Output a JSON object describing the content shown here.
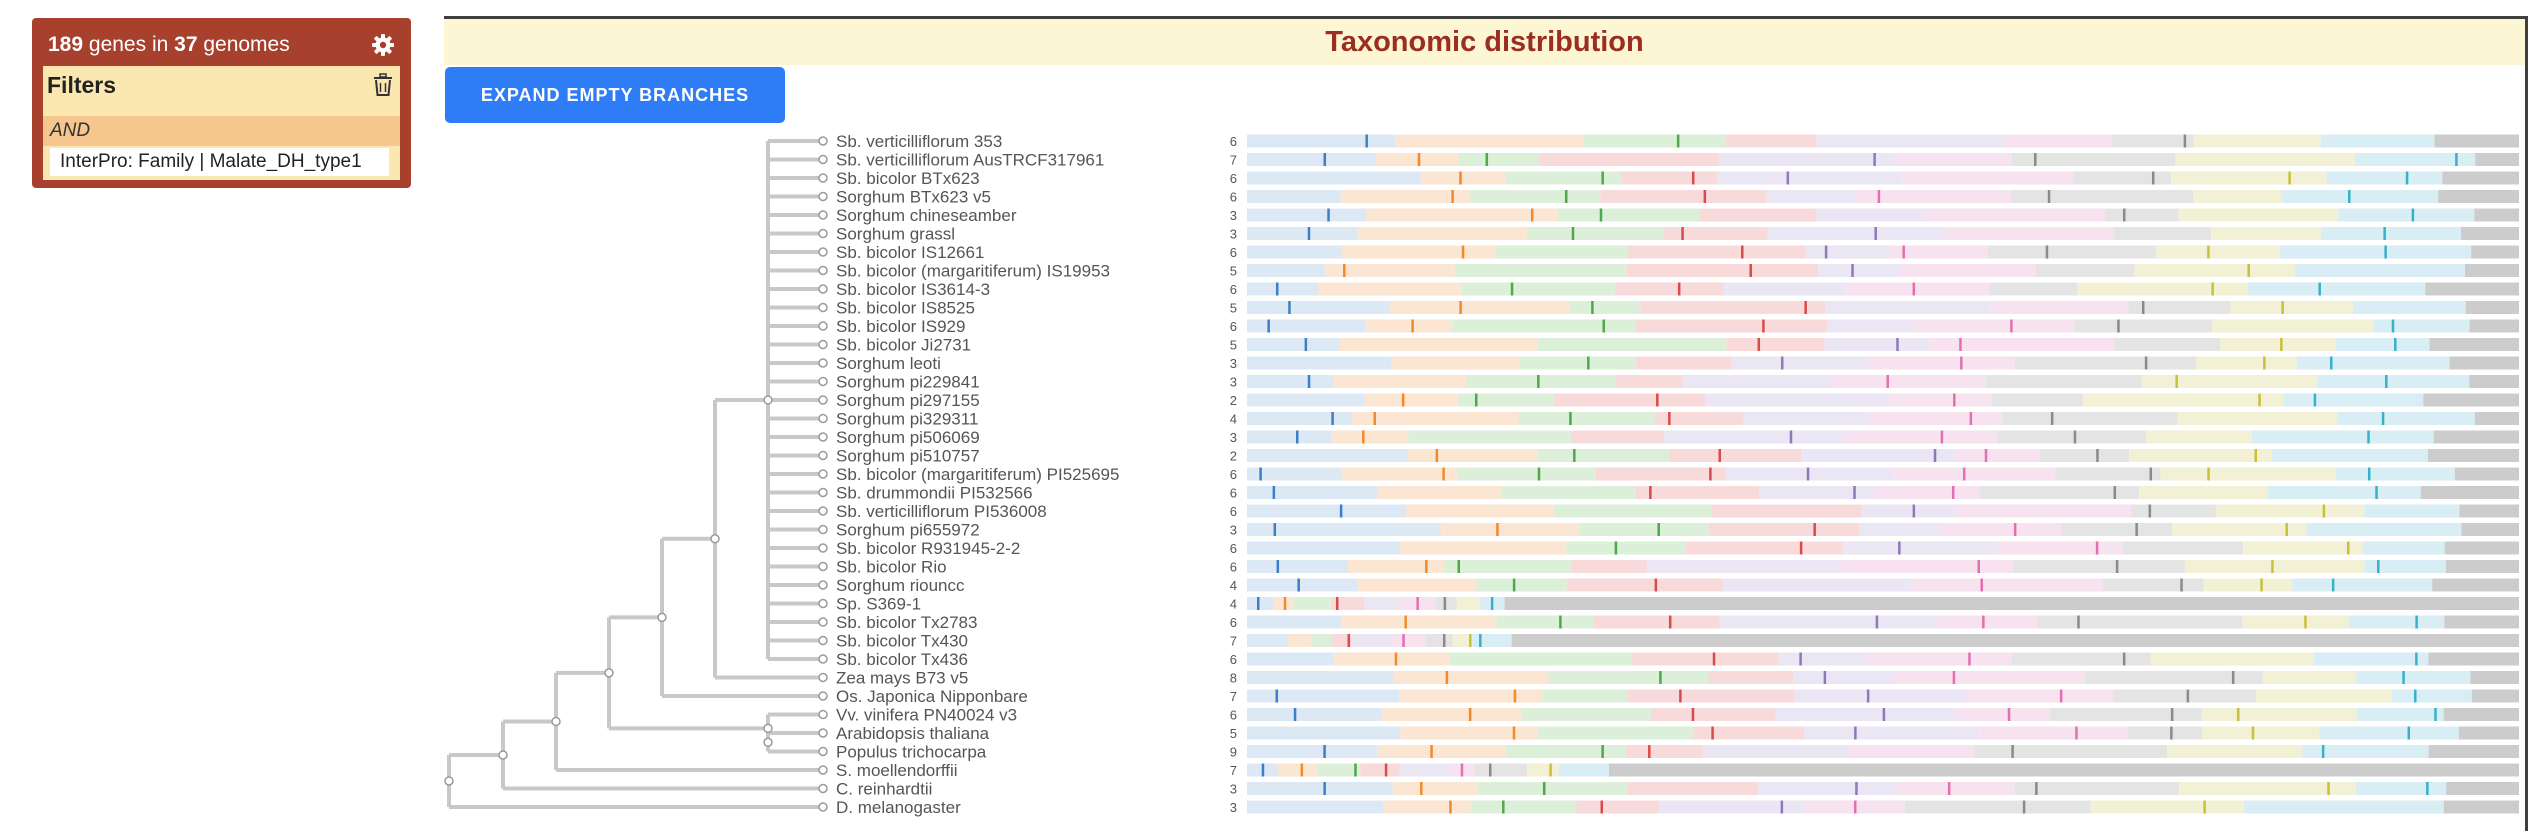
{
  "summary": {
    "genes_count": "189",
    "genes_text": "genes in",
    "genomes_count": "37",
    "genomes_text": "genomes"
  },
  "filters": {
    "title": "Filters",
    "operator": "AND",
    "chip": "InterPro: Family | Malate_DH_type1"
  },
  "panel": {
    "title": "Taxonomic distribution",
    "expand_label": "EXPAND EMPTY BRANCHES"
  },
  "colors": {
    "panel_red": "#a8402e",
    "header_text": "#9b2e20",
    "button_blue": "#2f7df6"
  },
  "rows": [
    {
      "label": "Sb. verticilliflorum 353",
      "count": "6"
    },
    {
      "label": "Sb. verticilliflorum AusTRCF317961",
      "count": "7"
    },
    {
      "label": "Sb. bicolor BTx623",
      "count": "6"
    },
    {
      "label": "Sorghum BTx623 v5",
      "count": "6"
    },
    {
      "label": "Sorghum chineseamber",
      "count": "3"
    },
    {
      "label": "Sorghum grassl",
      "count": "3"
    },
    {
      "label": "Sb. bicolor IS12661",
      "count": "6"
    },
    {
      "label": "Sb. bicolor (margaritiferum) IS19953",
      "count": "5"
    },
    {
      "label": "Sb. bicolor IS3614-3",
      "count": "6"
    },
    {
      "label": "Sb. bicolor IS8525",
      "count": "5"
    },
    {
      "label": "Sb. bicolor IS929",
      "count": "6"
    },
    {
      "label": "Sb. bicolor Ji2731",
      "count": "5"
    },
    {
      "label": "Sorghum leoti",
      "count": "3"
    },
    {
      "label": "Sorghum pi229841",
      "count": "3"
    },
    {
      "label": "Sorghum pi297155",
      "count": "2"
    },
    {
      "label": "Sorghum pi329311",
      "count": "4"
    },
    {
      "label": "Sorghum pi506069",
      "count": "3"
    },
    {
      "label": "Sorghum pi510757",
      "count": "2"
    },
    {
      "label": "Sb. bicolor (margaritiferum) PI525695",
      "count": "6"
    },
    {
      "label": "Sb. drummondii PI532566",
      "count": "6"
    },
    {
      "label": "Sb. verticilliflorum PI536008",
      "count": "6"
    },
    {
      "label": "Sorghum pi655972",
      "count": "3"
    },
    {
      "label": "Sb. bicolor R931945-2-2",
      "count": "6"
    },
    {
      "label": "Sb. bicolor Rio",
      "count": "6"
    },
    {
      "label": "Sorghum riouncc",
      "count": "4"
    },
    {
      "label": "Sp. S369-1",
      "count": "4"
    },
    {
      "label": "Sb. bicolor Tx2783",
      "count": "6"
    },
    {
      "label": "Sb. bicolor Tx430",
      "count": "7"
    },
    {
      "label": "Sb. bicolor Tx436",
      "count": "6"
    },
    {
      "label": "Zea mays B73 v5",
      "count": "8"
    },
    {
      "label": "Os. Japonica Nipponbare",
      "count": "7"
    },
    {
      "label": "Vv. vinifera PN40024 v3",
      "count": "6"
    },
    {
      "label": "Arabidopsis thaliana",
      "count": "5"
    },
    {
      "label": "Populus trichocarpa",
      "count": "9"
    },
    {
      "label": "S. moellendorffii",
      "count": "7"
    },
    {
      "label": "C. reinhardtii",
      "count": "3"
    },
    {
      "label": "D. melanogaster",
      "count": "3"
    }
  ]
}
